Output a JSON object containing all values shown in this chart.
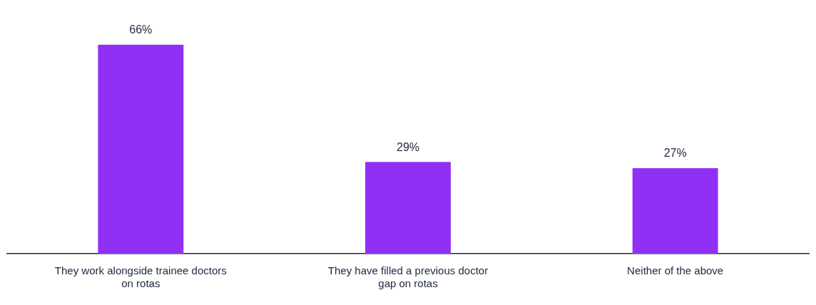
{
  "chart_data": {
    "type": "bar",
    "categories": [
      "They work alongside trainee doctors on rotas",
      "They have filled a previous doctor gap on rotas",
      "Neither of the above"
    ],
    "values": [
      66,
      29,
      27
    ],
    "value_labels": [
      "66%",
      "29%",
      "27%"
    ],
    "color": "#9130f5",
    "grid": false,
    "legend": false
  }
}
